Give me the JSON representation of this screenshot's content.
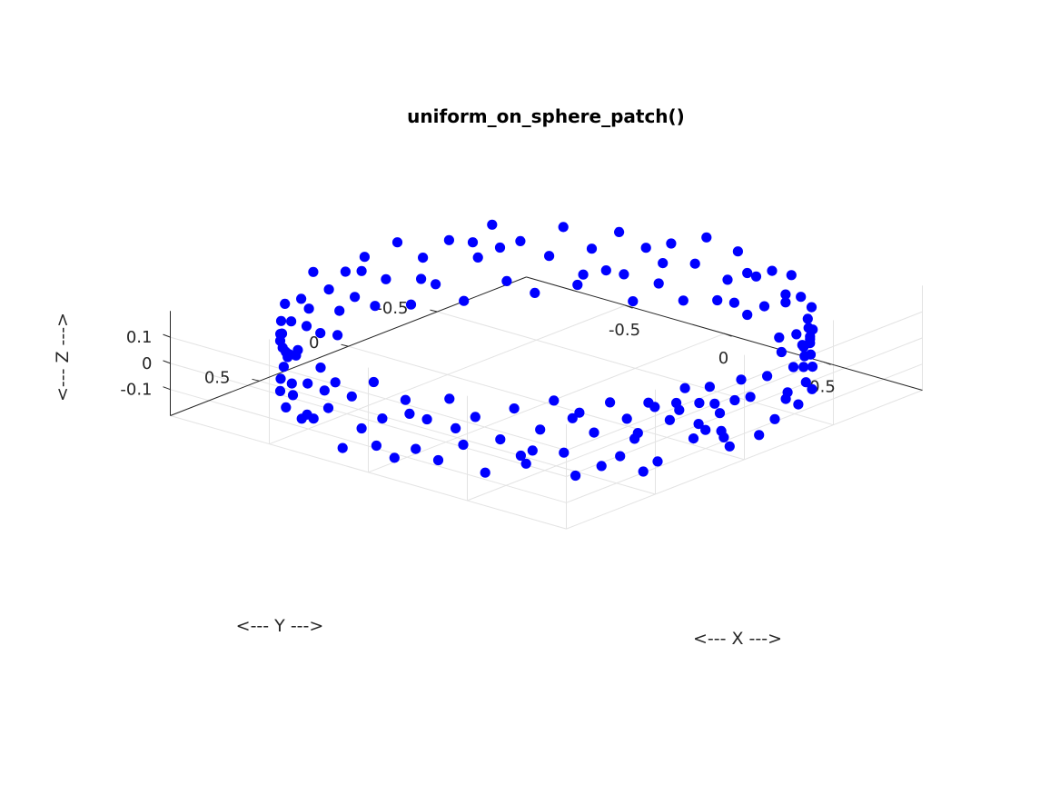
{
  "chart_data": {
    "type": "scatter",
    "title": "uniform_on_sphere_patch()",
    "xlabel": "<--- X --->",
    "ylabel": "<--- Y --->",
    "zlabel": "<--- Z --->",
    "xlim": [
      -1,
      1
    ],
    "ylim": [
      -1,
      1
    ],
    "zlim": [
      -0.2,
      0.2
    ],
    "xticks": [
      -0.5,
      0,
      0.5
    ],
    "yticks": [
      -0.5,
      0,
      0.5
    ],
    "zticks": [
      -0.1,
      0,
      0.1
    ],
    "xtick_labels": [
      "-0.5",
      "0",
      "0.5"
    ],
    "ytick_labels": [
      "-0.5",
      "0",
      "0.5"
    ],
    "ztick_labels": [
      "-0.1",
      "0",
      "0.1"
    ],
    "grid": true,
    "view": "3d",
    "marker_color": "#0000ff",
    "series": [
      {
        "points": [
          [
            0.985,
            0.15,
            0.05
          ],
          [
            0.978,
            0.194,
            -0.04
          ],
          [
            0.981,
            0.173,
            0.12
          ],
          [
            0.996,
            0.078,
            -0.13
          ],
          [
            0.992,
            0.129,
            0.01
          ],
          [
            0.974,
            0.224,
            0.07
          ],
          [
            0.99,
            0.104,
            -0.09
          ],
          [
            0.958,
            0.287,
            0.14
          ],
          [
            0.968,
            0.25,
            -0.06
          ],
          [
            0.946,
            0.322,
            0.09
          ],
          [
            0.918,
            0.396,
            -0.12
          ],
          [
            0.937,
            0.349,
            0.03
          ],
          [
            0.902,
            0.43,
            0.11
          ],
          [
            0.877,
            0.48,
            -0.02
          ],
          [
            0.893,
            0.449,
            -0.15
          ],
          [
            0.862,
            0.506,
            0.06
          ],
          [
            0.827,
            0.562,
            0.13
          ],
          [
            0.848,
            0.529,
            -0.08
          ],
          [
            0.791,
            0.612,
            0.02
          ],
          [
            0.808,
            0.589,
            -0.11
          ],
          [
            0.756,
            0.655,
            0.1
          ],
          [
            0.716,
            0.698,
            -0.05
          ],
          [
            0.689,
            0.724,
            0.15
          ],
          [
            0.746,
            0.666,
            -0.14
          ],
          [
            0.651,
            0.759,
            0.04
          ],
          [
            0.61,
            0.792,
            -0.09
          ],
          [
            0.574,
            0.819,
            0.12
          ],
          [
            0.53,
            0.848,
            0.0
          ],
          [
            0.48,
            0.877,
            -0.13
          ],
          [
            0.446,
            0.895,
            0.08
          ],
          [
            0.403,
            0.915,
            -0.03
          ],
          [
            0.352,
            0.936,
            0.14
          ],
          [
            0.309,
            0.951,
            -0.1
          ],
          [
            0.264,
            0.964,
            0.05
          ],
          [
            0.218,
            0.976,
            -0.07
          ],
          [
            0.174,
            0.985,
            0.11
          ],
          [
            0.125,
            0.992,
            -0.12
          ],
          [
            0.069,
            0.998,
            0.02
          ],
          [
            0.026,
            0.999,
            0.15
          ],
          [
            -0.035,
            0.999,
            -0.04
          ],
          [
            -0.087,
            0.996,
            0.07
          ],
          [
            -0.139,
            0.99,
            -0.14
          ],
          [
            -0.182,
            0.983,
            0.1
          ],
          [
            -0.225,
            0.974,
            -0.01
          ],
          [
            -0.276,
            0.961,
            0.13
          ],
          [
            -0.326,
            0.945,
            -0.08
          ],
          [
            -0.371,
            0.928,
            0.04
          ],
          [
            -0.419,
            0.908,
            -0.11
          ],
          [
            -0.454,
            0.891,
            0.14
          ],
          [
            -0.503,
            0.864,
            -0.05
          ],
          [
            -0.547,
            0.837,
            0.09
          ],
          [
            -0.588,
            0.809,
            -0.13
          ],
          [
            -0.624,
            0.781,
            0.01
          ],
          [
            -0.663,
            0.749,
            0.12
          ],
          [
            -0.7,
            0.714,
            -0.07
          ],
          [
            -0.731,
            0.682,
            0.06
          ],
          [
            -0.766,
            0.643,
            -0.15
          ],
          [
            -0.798,
            0.602,
            0.1
          ],
          [
            -0.829,
            0.559,
            -0.02
          ],
          [
            -0.857,
            0.515,
            0.13
          ],
          [
            -0.881,
            0.473,
            -0.09
          ],
          [
            -0.903,
            0.429,
            0.03
          ],
          [
            -0.927,
            0.375,
            -0.12
          ],
          [
            -0.945,
            0.326,
            0.08
          ],
          [
            -0.96,
            0.279,
            -0.04
          ],
          [
            -0.974,
            0.226,
            0.15
          ],
          [
            -0.985,
            0.174,
            -0.1
          ],
          [
            -0.993,
            0.117,
            0.05
          ],
          [
            -0.998,
            0.063,
            -0.14
          ],
          [
            -0.999,
            0.017,
            0.09
          ],
          [
            -0.999,
            -0.035,
            -0.02
          ],
          [
            -0.996,
            -0.087,
            0.12
          ],
          [
            -0.99,
            -0.139,
            -0.08
          ],
          [
            -0.982,
            -0.191,
            0.01
          ],
          [
            -0.97,
            -0.242,
            0.14
          ],
          [
            -0.954,
            -0.301,
            -0.11
          ],
          [
            -0.937,
            -0.349,
            0.06
          ],
          [
            -0.917,
            -0.398,
            -0.05
          ],
          [
            -0.894,
            -0.448,
            0.11
          ],
          [
            -0.866,
            -0.5,
            -0.13
          ],
          [
            -0.837,
            -0.547,
            0.03
          ],
          [
            -0.806,
            -0.592,
            0.15
          ],
          [
            -0.772,
            -0.636,
            -0.07
          ],
          [
            -0.738,
            -0.675,
            0.08
          ],
          [
            -0.7,
            -0.714,
            -0.12
          ],
          [
            -0.661,
            -0.751,
            0.02
          ],
          [
            -0.62,
            -0.785,
            0.13
          ],
          [
            -0.577,
            -0.817,
            -0.09
          ],
          [
            -0.532,
            -0.847,
            0.05
          ],
          [
            -0.485,
            -0.875,
            -0.03
          ],
          [
            -0.44,
            -0.898,
            0.12
          ],
          [
            -0.391,
            -0.921,
            -0.14
          ],
          [
            -0.342,
            -0.94,
            0.07
          ],
          [
            -0.292,
            -0.956,
            -0.06
          ],
          [
            -0.242,
            -0.97,
            0.1
          ],
          [
            -0.191,
            -0.982,
            -0.11
          ],
          [
            -0.139,
            -0.99,
            0.04
          ],
          [
            -0.087,
            -0.996,
            0.15
          ],
          [
            -0.035,
            -0.999,
            -0.08
          ],
          [
            0.017,
            -0.999,
            0.01
          ],
          [
            0.07,
            -0.998,
            0.13
          ],
          [
            0.122,
            -0.993,
            -0.1
          ],
          [
            0.174,
            -0.985,
            0.06
          ],
          [
            0.225,
            -0.974,
            -0.04
          ],
          [
            0.276,
            -0.961,
            0.11
          ],
          [
            0.326,
            -0.945,
            -0.13
          ],
          [
            0.375,
            -0.927,
            0.02
          ],
          [
            0.423,
            -0.906,
            0.14
          ],
          [
            0.469,
            -0.883,
            -0.07
          ],
          [
            0.515,
            -0.857,
            0.09
          ],
          [
            0.559,
            -0.829,
            -0.12
          ],
          [
            0.602,
            -0.799,
            0.04
          ],
          [
            0.643,
            -0.766,
            -0.02
          ],
          [
            0.682,
            -0.731,
            0.12
          ],
          [
            0.719,
            -0.695,
            -0.09
          ],
          [
            0.755,
            -0.656,
            0.07
          ],
          [
            0.788,
            -0.616,
            -0.14
          ],
          [
            0.819,
            -0.574,
            0.01
          ],
          [
            0.848,
            -0.53,
            0.13
          ],
          [
            0.875,
            -0.485,
            -0.06
          ],
          [
            0.899,
            -0.438,
            0.1
          ],
          [
            0.921,
            -0.391,
            -0.11
          ],
          [
            0.94,
            -0.342,
            0.05
          ],
          [
            0.956,
            -0.292,
            -0.03
          ],
          [
            0.97,
            -0.242,
            0.14
          ],
          [
            0.982,
            -0.191,
            -0.1
          ],
          [
            0.99,
            -0.139,
            0.08
          ],
          [
            0.996,
            -0.087,
            -0.13
          ],
          [
            0.999,
            -0.035,
            0.03
          ],
          [
            0.999,
            0.017,
            0.11
          ],
          [
            0.972,
            0.226,
            -0.01
          ],
          [
            0.949,
            0.309,
            0.06
          ],
          [
            0.883,
            0.468,
            0.0
          ],
          [
            0.738,
            0.674,
            0.08
          ],
          [
            0.594,
            0.804,
            -0.06
          ],
          [
            0.375,
            0.927,
            0.03
          ],
          [
            0.04,
            0.999,
            -0.09
          ],
          [
            -0.25,
            0.968,
            0.05
          ],
          [
            -0.515,
            0.857,
            -0.01
          ],
          [
            -0.723,
            0.69,
            0.09
          ],
          [
            -0.866,
            0.5,
            -0.06
          ],
          [
            -0.966,
            0.259,
            0.02
          ],
          [
            -0.996,
            -0.07,
            0.07
          ],
          [
            -0.94,
            -0.342,
            -0.02
          ],
          [
            -0.788,
            -0.616,
            0.06
          ],
          [
            -0.559,
            -0.829,
            -0.05
          ],
          [
            -0.276,
            -0.961,
            0.02
          ],
          [
            0.052,
            -0.998,
            -0.07
          ],
          [
            0.375,
            -0.927,
            0.05
          ],
          [
            0.643,
            -0.766,
            -0.01
          ],
          [
            0.829,
            -0.559,
            0.06
          ],
          [
            0.961,
            -0.276,
            -0.05
          ],
          [
            0.998,
            0.052,
            0.04
          ],
          [
            0.913,
            0.407,
            0.09
          ],
          [
            0.629,
            0.777,
            -0.04
          ],
          [
            0.191,
            0.981,
            0.06
          ],
          [
            -0.375,
            0.927,
            -0.08
          ],
          [
            -0.819,
            0.574,
            0.04
          ],
          [
            -0.998,
            0.052,
            -0.05
          ],
          [
            -0.848,
            -0.53,
            0.09
          ],
          [
            -0.423,
            -0.906,
            -0.04
          ],
          [
            0.122,
            -0.993,
            0.06
          ],
          [
            0.545,
            -0.839,
            -0.09
          ],
          [
            0.891,
            -0.454,
            0.01
          ],
          [
            0.993,
            0.122,
            -0.06
          ]
        ]
      }
    ]
  }
}
